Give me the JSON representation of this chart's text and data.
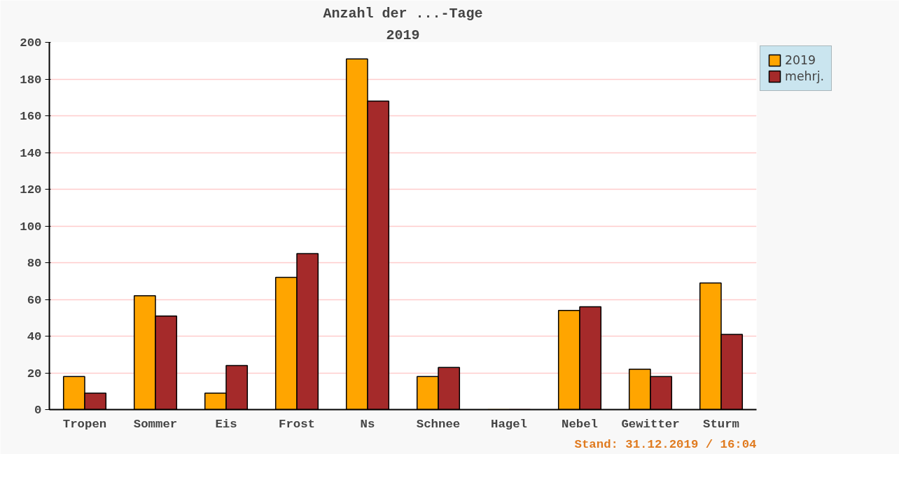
{
  "chart_data": {
    "type": "bar",
    "title": "Anzahl der ...-Tage",
    "subtitle": "2019",
    "categories": [
      "Tropen",
      "Sommer",
      "Eis",
      "Frost",
      "Ns",
      "Schnee",
      "Hagel",
      "Nebel",
      "Gewitter",
      "Sturm"
    ],
    "series": [
      {
        "name": "2019",
        "color": "#ffa500",
        "values": [
          18,
          62,
          9,
          72,
          191,
          18,
          0,
          54,
          22,
          69
        ]
      },
      {
        "name": "mehrj.",
        "color": "#a52a2a",
        "values": [
          9,
          51,
          24,
          85,
          168,
          23,
          0,
          56,
          18,
          41
        ]
      }
    ],
    "ylim": [
      0,
      200
    ],
    "yticks": [
      0,
      20,
      40,
      60,
      80,
      100,
      120,
      140,
      160,
      180,
      200
    ],
    "grid": "y",
    "legend": "top right",
    "annotations": [
      "Stand: 31.12.2019 / 16:04"
    ]
  }
}
